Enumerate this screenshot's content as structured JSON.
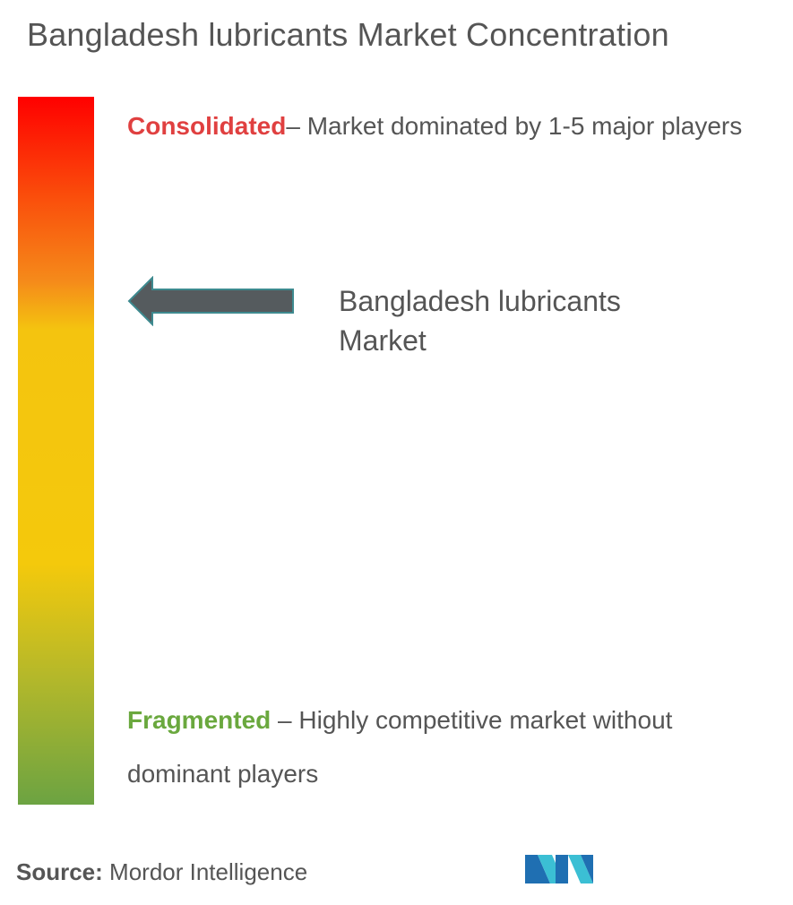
{
  "title": "Bangladesh lubricants Market Concentration",
  "consolidated": {
    "keyword": "Consolidated",
    "description": "– Market dominated by 1-5 major players",
    "color": "#e04040"
  },
  "fragmented": {
    "keyword": "Fragmented",
    "description": " – Highly competitive market without dominant players",
    "color": "#6aa83e"
  },
  "market_marker": {
    "label": "Bangladesh lubricants Market",
    "icon": "arrow-left-icon",
    "color": "#555b5e"
  },
  "source": {
    "label": "Source:",
    "value": "Mordor Intelligence"
  },
  "logo": {
    "icon": "mordor-intelligence-logo",
    "colors": [
      "#1f6fb2",
      "#3bbfd4"
    ]
  },
  "scale_colors": [
    "#ff0000",
    "#f58a1a",
    "#f4c90c",
    "#6ca342"
  ]
}
